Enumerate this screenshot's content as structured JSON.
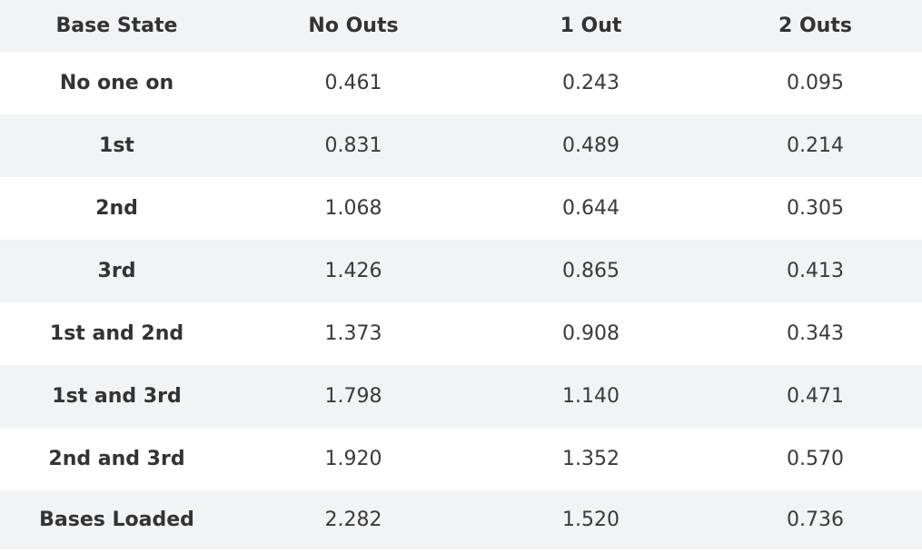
{
  "table": {
    "headers": [
      "Base State",
      "No Outs",
      "1 Out",
      "2 Outs"
    ],
    "rows": [
      {
        "base_state": "No one on",
        "values": [
          "0.461",
          "0.243",
          "0.095"
        ]
      },
      {
        "base_state": "1st",
        "values": [
          "0.831",
          "0.489",
          "0.214"
        ]
      },
      {
        "base_state": "2nd",
        "values": [
          "1.068",
          "0.644",
          "0.305"
        ]
      },
      {
        "base_state": "3rd",
        "values": [
          "1.426",
          "0.865",
          "0.413"
        ]
      },
      {
        "base_state": "1st and 2nd",
        "values": [
          "1.373",
          "0.908",
          "0.343"
        ]
      },
      {
        "base_state": "1st and 3rd",
        "values": [
          "1.798",
          "1.140",
          "0.471"
        ]
      },
      {
        "base_state": "2nd and 3rd",
        "values": [
          "1.920",
          "1.352",
          "0.570"
        ]
      },
      {
        "base_state": "Bases Loaded",
        "values": [
          "2.282",
          "1.520",
          "0.736"
        ]
      }
    ]
  },
  "colors": {
    "header_bg": "#f2f3f5",
    "stripe_bg": "#f2f3f5",
    "text": "#333333"
  }
}
